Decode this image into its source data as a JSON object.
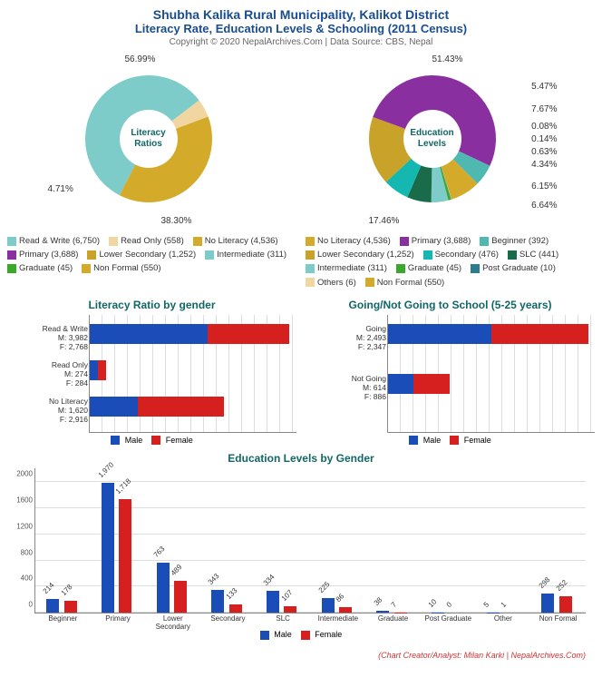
{
  "header": {
    "title": "Shubha Kalika Rural Municipality, Kalikot District",
    "subtitle": "Literacy Rate, Education Levels & Schooling (2011 Census)",
    "copyright": "Copyright © 2020 NepalArchives.Com | Data Source: CBS, Nepal"
  },
  "colors": {
    "male": "#1a4db8",
    "female": "#d62020",
    "teal_title": "#116666",
    "grid": "#dddddd"
  },
  "donut_literacy": {
    "center_text_1": "Literacy",
    "center_text_2": "Ratios",
    "slices": [
      {
        "label": "Read & Write",
        "count": "6,750",
        "pct": 56.99,
        "color": "#7eccc9",
        "ext_label": "56.99%"
      },
      {
        "label": "Read Only",
        "count": "558",
        "pct": 4.71,
        "color": "#f2d6a2",
        "ext_label": "4.71%"
      },
      {
        "label": "No Literacy",
        "count": "4,536",
        "pct": 38.3,
        "color": "#d4aa2a",
        "ext_label": "38.30%"
      }
    ]
  },
  "donut_education": {
    "center_text_1": "Education",
    "center_text_2": "Levels",
    "slices": [
      {
        "label": "Primary",
        "count": "3,688",
        "pct": 51.43,
        "color": "#8a2fa0",
        "ext_label": "51.43%"
      },
      {
        "label": "Beginner",
        "count": "392",
        "pct": 5.47,
        "color": "#4fb8b0",
        "ext_label": "5.47%"
      },
      {
        "label": "Non Formal",
        "count": "550",
        "pct": 7.67,
        "color": "#d4aa2a",
        "ext_label": "7.67%"
      },
      {
        "label": "Others",
        "count": "6",
        "pct": 0.08,
        "color": "#f2d6a2",
        "ext_label": "0.08%"
      },
      {
        "label": "Post Graduate",
        "count": "10",
        "pct": 0.14,
        "color": "#2a7d8c",
        "ext_label": "0.14%"
      },
      {
        "label": "Graduate",
        "count": "45",
        "pct": 0.63,
        "color": "#3aa82a",
        "ext_label": "0.63%"
      },
      {
        "label": "Intermediate",
        "count": "311",
        "pct": 4.34,
        "color": "#7eccc9",
        "ext_label": "4.34%"
      },
      {
        "label": "SLC",
        "count": "441",
        "pct": 6.15,
        "color": "#1a6b4a",
        "ext_label": "6.15%"
      },
      {
        "label": "Secondary",
        "count": "476",
        "pct": 6.64,
        "color": "#15b8b0",
        "ext_label": "6.64%"
      },
      {
        "label": "Lower Secondary",
        "count": "1,252",
        "pct": 17.46,
        "color": "#c9a22a",
        "ext_label": "17.46%"
      }
    ],
    "legend_order": [
      "No Literacy (4,536)",
      "Primary (3,688)",
      "Beginner (392)",
      "Lower Secondary (1,252)",
      "Secondary (476)",
      "SLC (441)",
      "Intermediate (311)",
      "Graduate (45)",
      "Post Graduate (10)",
      "Others (6)",
      "Non Formal (550)"
    ],
    "legend_colors": [
      "#d4aa2a",
      "#8a2fa0",
      "#4fb8b0",
      "#c9a22a",
      "#15b8b0",
      "#1a6b4a",
      "#7eccc9",
      "#3aa82a",
      "#2a7d8c",
      "#f2d6a2",
      "#d4aa2a"
    ]
  },
  "hbar_literacy": {
    "title": "Literacy Ratio by gender",
    "max": 7000,
    "groups": [
      {
        "name": "Read & Write",
        "male": 3982,
        "female": 2768,
        "m_label": "M: 3,982",
        "f_label": "F: 2,768"
      },
      {
        "name": "Read Only",
        "male": 274,
        "female": 284,
        "m_label": "M: 274",
        "f_label": "F: 284"
      },
      {
        "name": "No Literacy",
        "male": 1620,
        "female": 2916,
        "m_label": "M: 1,620",
        "f_label": "F: 2,916"
      }
    ]
  },
  "hbar_school": {
    "title": "Going/Not Going to School (5-25 years)",
    "max": 5000,
    "groups": [
      {
        "name": "Going",
        "male": 2493,
        "female": 2347,
        "m_label": "M: 2,493",
        "f_label": "F: 2,347"
      },
      {
        "name": "Not Going",
        "male": 614,
        "female": 886,
        "m_label": "M: 614",
        "f_label": "F: 886"
      }
    ]
  },
  "vbar_edu": {
    "title": "Education Levels by Gender",
    "ylim": 2200,
    "yticks": [
      0,
      400,
      800,
      1200,
      1600,
      2000
    ],
    "categories": [
      {
        "name": "Beginner",
        "male": 214,
        "female": 178
      },
      {
        "name": "Primary",
        "male": 1970,
        "female": 1718
      },
      {
        "name": "Lower Secondary",
        "male": 763,
        "female": 489
      },
      {
        "name": "Secondary",
        "male": 343,
        "female": 133
      },
      {
        "name": "SLC",
        "male": 334,
        "female": 107
      },
      {
        "name": "Intermediate",
        "male": 225,
        "female": 86
      },
      {
        "name": "Graduate",
        "male": 38,
        "female": 7
      },
      {
        "name": "Post Graduate",
        "male": 10,
        "female": 0
      },
      {
        "name": "Other",
        "male": 5,
        "female": 1
      },
      {
        "name": "Non Formal",
        "male": 298,
        "female": 252
      }
    ]
  },
  "legend_mf": {
    "male": "Male",
    "female": "Female"
  },
  "credit": "(Chart Creator/Analyst: Milan Karki | NepalArchives.Com)"
}
